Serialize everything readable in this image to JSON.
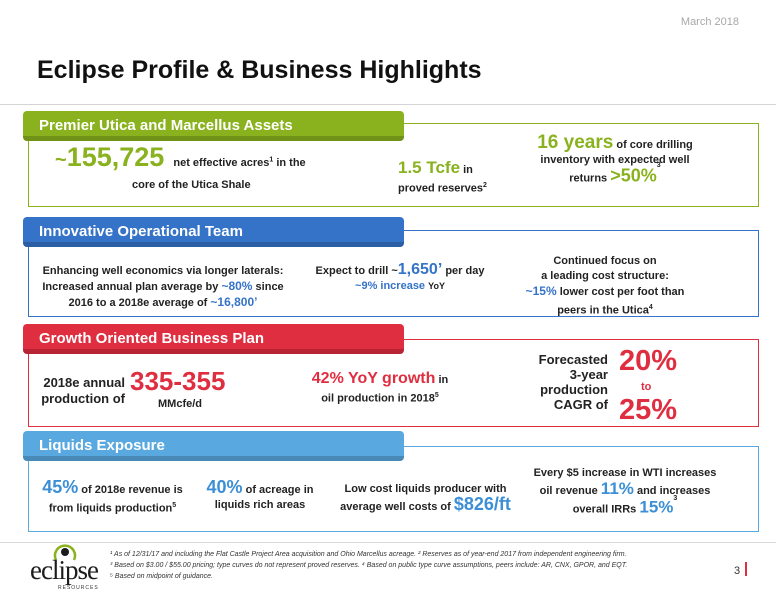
{
  "header": {
    "date": "March 2018",
    "title": "Eclipse Profile & Business Highlights"
  },
  "colors": {
    "green": "#8ab21e",
    "blue": "#3573c8",
    "red": "#e02e41",
    "sky": "#5aa8e0"
  },
  "sections": {
    "assets": {
      "heading": "Premier Utica and Marcellus Assets",
      "acres_prefix": "~",
      "acres_value": "155,725",
      "acres_text_a": "net effective acres",
      "acres_sup": "1",
      "acres_text_b": "in the",
      "acres_text_c": "core of the Utica Shale",
      "reserves_value": "1.5 Tcfe",
      "reserves_in": "in",
      "reserves_text": "proved reserves",
      "reserves_sup": "2",
      "inventory_years": "16 years",
      "inventory_text_a": "of core drilling",
      "inventory_text_b": "inventory with expected well",
      "inventory_sup": "3",
      "inventory_text_c": "returns",
      "inventory_pct": ">50%"
    },
    "ops": {
      "heading": "Innovative Operational Team",
      "laterals_a": "Enhancing well economics via longer laterals:",
      "laterals_b": "Increased annual plan average by",
      "laterals_pct": "~80%",
      "laterals_c": "since",
      "laterals_d": "2016 to a 2018e average of",
      "laterals_val": "~16,800’",
      "drill_a": "Expect to drill",
      "drill_tilde": "~",
      "drill_val": "1,650’",
      "drill_b": "per day",
      "drill_pct": "~9% increase",
      "drill_c": "YoY",
      "cost_a": "Continued focus on",
      "cost_b": "a leading cost structure:",
      "cost_pct": "~15%",
      "cost_c": "lower cost per foot than",
      "cost_d": "peers in the Utica",
      "cost_sup": "4"
    },
    "growth": {
      "heading": "Growth Oriented Business Plan",
      "prod_label_a": "2018e annual",
      "prod_label_b": "production of",
      "prod_value": "335-355",
      "prod_unit": "MMcfe/d",
      "oil_value": "42% YoY growth",
      "oil_in": "in",
      "oil_text": "oil production in 2018",
      "oil_sup": "5",
      "cagr_a": "Forecasted",
      "cagr_b": "3-year",
      "cagr_c": "production",
      "cagr_d": "CAGR of",
      "cagr_low": "20%",
      "cagr_to": "to",
      "cagr_high": "25%"
    },
    "liquids": {
      "heading": "Liquids Exposure",
      "rev_pct": "45%",
      "rev_a": "of 2018e revenue is",
      "rev_b": "from liquids production",
      "rev_sup": "5",
      "acre_pct": "40%",
      "acre_a": "of acreage in",
      "acre_b": "liquids rich areas",
      "cost_a": "Low cost liquids producer with",
      "cost_b": "average well costs of",
      "cost_val": "$826/ft",
      "wti_a": "Every $5 increase in WTI increases",
      "wti_b": "oil revenue",
      "wti_pct1": "11%",
      "wti_c": "and increases",
      "wti_d": "overall IRRs",
      "wti_pct2": "15%",
      "wti_sup": "3"
    }
  },
  "footer": {
    "logo_name": "eclipse",
    "logo_sub": "RESOURCES",
    "note1": "As of 12/31/17 and including the Flat Castle Project Area acquisition and Ohio Marcellus acreage. ² Reserves as of year-end 2017 from independent engineering firm.",
    "note2": "Based on $3.00 / $55.00 pricing; type curves do not represent proved reserves. ⁴ Based on public type curve assumptions, peers include: AR, CNX, GPOR, and EQT.",
    "note3": "Based on midpoint of guidance.",
    "note1_num": "¹",
    "note2_num": "³",
    "note3_num": "⁵",
    "page": "3"
  }
}
